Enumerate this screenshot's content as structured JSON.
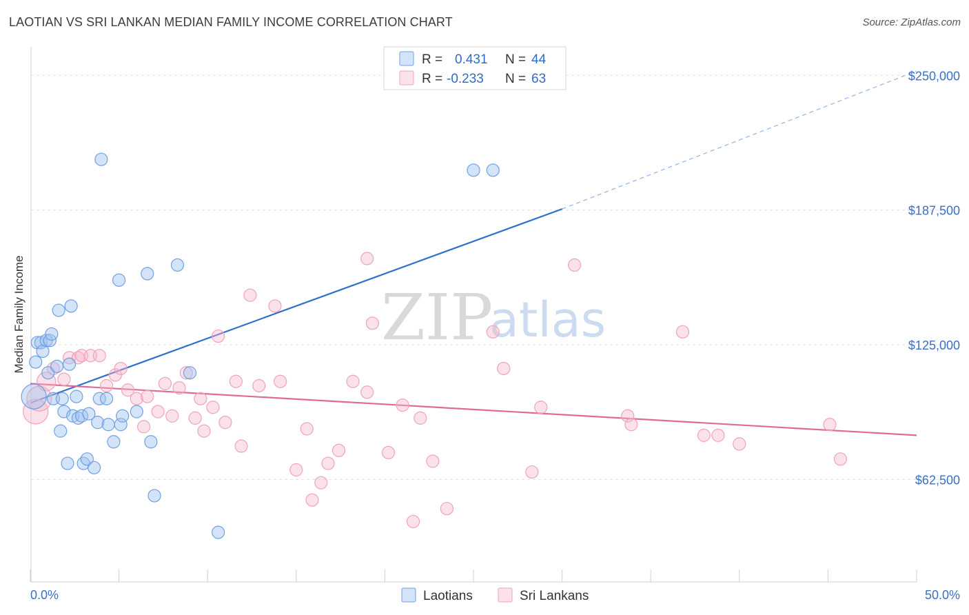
{
  "header": {
    "title": "LAOTIAN VS SRI LANKAN MEDIAN FAMILY INCOME CORRELATION CHART",
    "source": "Source: ZipAtlas.com"
  },
  "watermark": {
    "zip": "ZIP",
    "atlas": "atlas"
  },
  "legend": {
    "rows": [
      {
        "r_label": "R =",
        "r_value": "0.431",
        "n_label": "N =",
        "n_value": "44",
        "color": "#6fa0e0"
      },
      {
        "r_label": "R =",
        "r_value": "-0.233",
        "n_label": "N =",
        "n_value": "63",
        "color": "#f0a0b8"
      }
    ]
  },
  "bottom_legend": [
    "Laotians",
    "Sri Lankans"
  ],
  "chart_data": {
    "type": "scatter",
    "title": "LAOTIAN VS SRI LANKAN MEDIAN FAMILY INCOME CORRELATION CHART",
    "xlabel": "",
    "ylabel": "Median Family Income",
    "xlim": [
      0,
      50
    ],
    "ylim": [
      15000,
      260000
    ],
    "x_tick_labels": [
      "0.0%",
      "50.0%"
    ],
    "y_ticks": [
      62500,
      125000,
      187500,
      250000
    ],
    "y_tick_labels": [
      "$62,500",
      "$125,000",
      "$187,500",
      "$250,000"
    ],
    "grid": true,
    "legend_position": "top-center",
    "series": [
      {
        "name": "Laotians",
        "color": "#6fa0e0",
        "trend": {
          "x0": 0.0,
          "y0": 98000,
          "x1": 30.0,
          "y1": 188000,
          "dashed_to_x": 50.0,
          "dashed_to_y": 252000
        },
        "points": [
          {
            "x": 0.2,
            "y": 101000,
            "s": 2
          },
          {
            "x": 0.3,
            "y": 117000
          },
          {
            "x": 0.4,
            "y": 126000
          },
          {
            "x": 0.6,
            "y": 126000
          },
          {
            "x": 0.7,
            "y": 122000
          },
          {
            "x": 0.9,
            "y": 127000
          },
          {
            "x": 1.0,
            "y": 112000
          },
          {
            "x": 1.1,
            "y": 127000
          },
          {
            "x": 1.2,
            "y": 130000
          },
          {
            "x": 1.3,
            "y": 100000
          },
          {
            "x": 1.5,
            "y": 115000
          },
          {
            "x": 1.6,
            "y": 141000
          },
          {
            "x": 1.7,
            "y": 85000
          },
          {
            "x": 1.8,
            "y": 100000
          },
          {
            "x": 1.9,
            "y": 94000
          },
          {
            "x": 2.1,
            "y": 70000
          },
          {
            "x": 2.2,
            "y": 116000
          },
          {
            "x": 2.3,
            "y": 143000
          },
          {
            "x": 2.4,
            "y": 92000
          },
          {
            "x": 2.6,
            "y": 101000
          },
          {
            "x": 2.7,
            "y": 91000
          },
          {
            "x": 2.9,
            "y": 92000
          },
          {
            "x": 3.0,
            "y": 70000
          },
          {
            "x": 3.2,
            "y": 72000
          },
          {
            "x": 3.3,
            "y": 93000
          },
          {
            "x": 3.6,
            "y": 68000
          },
          {
            "x": 3.8,
            "y": 89000
          },
          {
            "x": 3.9,
            "y": 100000
          },
          {
            "x": 4.0,
            "y": 211000
          },
          {
            "x": 4.3,
            "y": 100000
          },
          {
            "x": 4.4,
            "y": 88000
          },
          {
            "x": 4.7,
            "y": 80000
          },
          {
            "x": 5.0,
            "y": 155000
          },
          {
            "x": 5.1,
            "y": 88000
          },
          {
            "x": 5.2,
            "y": 92000
          },
          {
            "x": 6.0,
            "y": 94000
          },
          {
            "x": 6.6,
            "y": 158000
          },
          {
            "x": 6.8,
            "y": 80000
          },
          {
            "x": 7.0,
            "y": 55000
          },
          {
            "x": 8.3,
            "y": 162000
          },
          {
            "x": 9.0,
            "y": 112000
          },
          {
            "x": 10.6,
            "y": 38000
          },
          {
            "x": 25.0,
            "y": 206000
          },
          {
            "x": 26.1,
            "y": 206000
          }
        ]
      },
      {
        "name": "Sri Lankans",
        "color": "#f0a0b8",
        "trend": {
          "x0": 0.0,
          "y0": 107000,
          "x1": 50.0,
          "y1": 83000
        },
        "points": [
          {
            "x": 0.3,
            "y": 94000,
            "s": 2
          },
          {
            "x": 0.5,
            "y": 100000,
            "s": 2
          },
          {
            "x": 0.9,
            "y": 108000,
            "s": 1.5
          },
          {
            "x": 1.3,
            "y": 114000
          },
          {
            "x": 1.9,
            "y": 109000
          },
          {
            "x": 2.2,
            "y": 119000
          },
          {
            "x": 2.7,
            "y": 119000
          },
          {
            "x": 2.9,
            "y": 120000
          },
          {
            "x": 3.4,
            "y": 120000
          },
          {
            "x": 3.9,
            "y": 120000
          },
          {
            "x": 4.3,
            "y": 106000
          },
          {
            "x": 4.8,
            "y": 111000
          },
          {
            "x": 5.1,
            "y": 114000
          },
          {
            "x": 5.5,
            "y": 104000
          },
          {
            "x": 6.0,
            "y": 100000
          },
          {
            "x": 6.4,
            "y": 87000
          },
          {
            "x": 6.6,
            "y": 101000
          },
          {
            "x": 7.2,
            "y": 94000
          },
          {
            "x": 7.6,
            "y": 107000
          },
          {
            "x": 8.0,
            "y": 92000
          },
          {
            "x": 8.4,
            "y": 105000
          },
          {
            "x": 8.8,
            "y": 112000
          },
          {
            "x": 9.3,
            "y": 91000
          },
          {
            "x": 9.6,
            "y": 100000
          },
          {
            "x": 9.8,
            "y": 85000
          },
          {
            "x": 10.3,
            "y": 96000
          },
          {
            "x": 10.6,
            "y": 129000
          },
          {
            "x": 11.0,
            "y": 89000
          },
          {
            "x": 11.6,
            "y": 108000
          },
          {
            "x": 11.9,
            "y": 78000
          },
          {
            "x": 12.4,
            "y": 148000
          },
          {
            "x": 12.9,
            "y": 106000
          },
          {
            "x": 13.8,
            "y": 143000
          },
          {
            "x": 14.1,
            "y": 108000
          },
          {
            "x": 15.0,
            "y": 67000
          },
          {
            "x": 15.6,
            "y": 86000
          },
          {
            "x": 15.9,
            "y": 53000
          },
          {
            "x": 16.4,
            "y": 61000
          },
          {
            "x": 16.8,
            "y": 70000
          },
          {
            "x": 17.4,
            "y": 76000
          },
          {
            "x": 18.2,
            "y": 108000
          },
          {
            "x": 19.0,
            "y": 103000
          },
          {
            "x": 19.3,
            "y": 135000
          },
          {
            "x": 19.0,
            "y": 165000
          },
          {
            "x": 20.2,
            "y": 75000
          },
          {
            "x": 21.0,
            "y": 97000
          },
          {
            "x": 21.6,
            "y": 43000
          },
          {
            "x": 22.0,
            "y": 91000
          },
          {
            "x": 22.7,
            "y": 71000
          },
          {
            "x": 23.5,
            "y": 49000
          },
          {
            "x": 26.1,
            "y": 131000
          },
          {
            "x": 26.7,
            "y": 114000
          },
          {
            "x": 28.3,
            "y": 66000
          },
          {
            "x": 28.8,
            "y": 96000
          },
          {
            "x": 30.7,
            "y": 162000
          },
          {
            "x": 33.7,
            "y": 92000
          },
          {
            "x": 33.9,
            "y": 88000
          },
          {
            "x": 36.8,
            "y": 131000
          },
          {
            "x": 38.0,
            "y": 83000
          },
          {
            "x": 38.8,
            "y": 83000
          },
          {
            "x": 40.0,
            "y": 79000
          },
          {
            "x": 45.1,
            "y": 88000
          },
          {
            "x": 45.7,
            "y": 72000
          }
        ]
      }
    ]
  }
}
